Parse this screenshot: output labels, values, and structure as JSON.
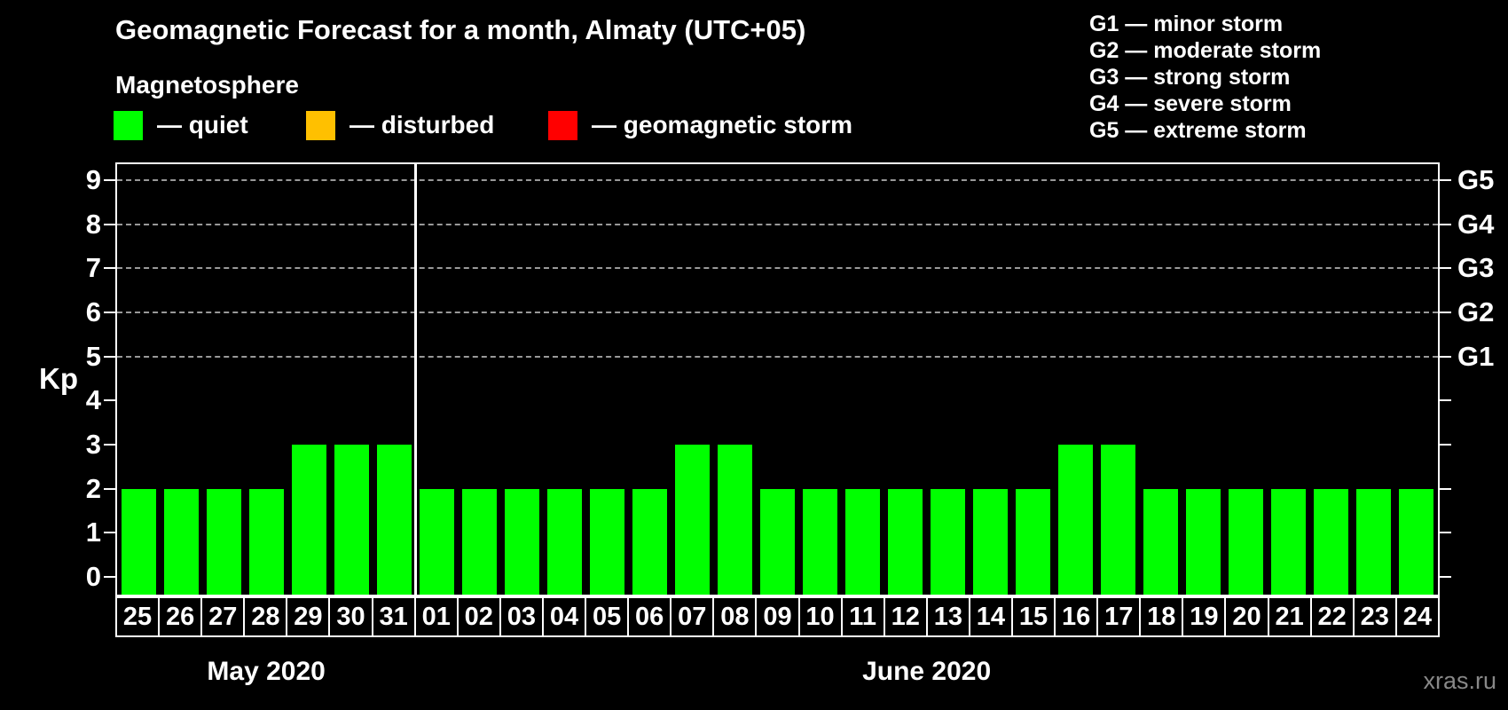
{
  "header": {
    "title": "Geomagnetic Forecast for a month, Almaty (UTC+05)",
    "subtitle": "Magnetosphere",
    "watermark": "xras.ru"
  },
  "legend": {
    "items": [
      {
        "name": "quiet",
        "label": "— quiet",
        "color": "#00ff00"
      },
      {
        "name": "disturbed",
        "label": "— disturbed",
        "color": "#ffc000"
      },
      {
        "name": "geomagnetic-storm",
        "label": "— geomagnetic storm",
        "color": "#ff0000"
      }
    ]
  },
  "g_legend": {
    "items": [
      {
        "label": "G1 — minor storm"
      },
      {
        "label": "G2 — moderate storm"
      },
      {
        "label": "G3 — strong storm"
      },
      {
        "label": "G4 — severe storm"
      },
      {
        "label": "G5 — extreme storm"
      }
    ]
  },
  "chart_data": {
    "type": "bar",
    "title": "Geomagnetic Forecast for a month, Almaty (UTC+05)",
    "ylabel": "Kp",
    "ylim": [
      0,
      9
    ],
    "yticks": [
      0,
      1,
      2,
      3,
      4,
      5,
      6,
      7,
      8,
      9
    ],
    "gridlines_kp": [
      5,
      6,
      7,
      8,
      9
    ],
    "grid_color": "#999999",
    "right_axis": [
      {
        "kp": 5,
        "label": "G1"
      },
      {
        "kp": 6,
        "label": "G2"
      },
      {
        "kp": 7,
        "label": "G3"
      },
      {
        "kp": 8,
        "label": "G4"
      },
      {
        "kp": 9,
        "label": "G5"
      }
    ],
    "bar_color": "#00ff00",
    "months": [
      {
        "label": "May 2020",
        "days": [
          "25",
          "26",
          "27",
          "28",
          "29",
          "30",
          "31"
        ],
        "values": [
          2,
          2,
          2,
          2,
          3,
          3,
          3
        ]
      },
      {
        "label": "June 2020",
        "days": [
          "01",
          "02",
          "03",
          "04",
          "05",
          "06",
          "07",
          "08",
          "09",
          "10",
          "11",
          "12",
          "13",
          "14",
          "15",
          "16",
          "17",
          "18",
          "19",
          "20",
          "21",
          "22",
          "23",
          "24"
        ],
        "values": [
          2,
          2,
          2,
          2,
          2,
          2,
          3,
          3,
          2,
          2,
          2,
          2,
          2,
          2,
          2,
          3,
          3,
          2,
          2,
          2,
          2,
          2,
          2,
          2
        ]
      }
    ]
  }
}
